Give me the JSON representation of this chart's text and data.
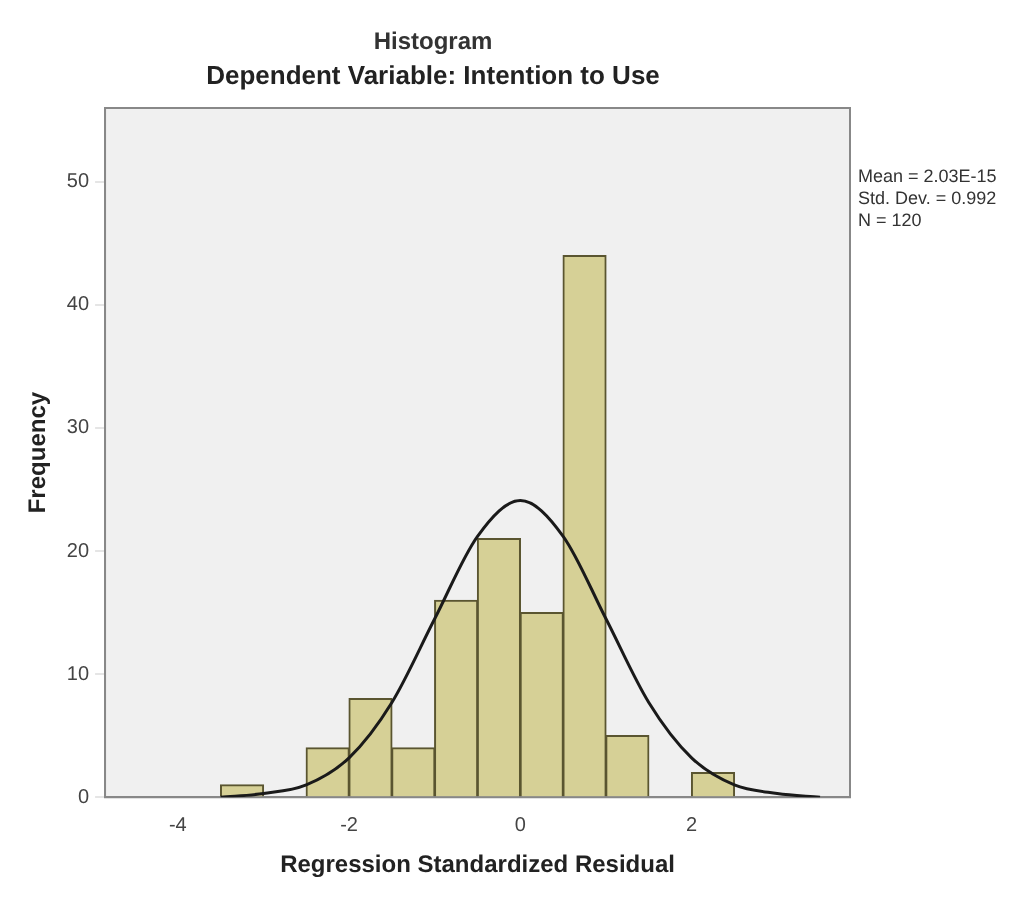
{
  "chart_data": {
    "type": "histogram",
    "title": "Histogram",
    "subtitle": "Dependent Variable: Intention to Use",
    "xlabel": "Regression Standardized Residual",
    "ylabel": "Frequency",
    "series": [
      {
        "bins": [
          -3.5,
          -3,
          -2.5,
          -2,
          -1.5,
          -1,
          -0.5,
          0,
          0.5,
          1,
          1.5,
          2,
          2.5
        ],
        "values": [
          1,
          0,
          4,
          8,
          4,
          16,
          21,
          15,
          44,
          5,
          0,
          2
        ],
        "color": "#d6d096"
      },
      {
        "type": "line",
        "x": [
          -3.5,
          -3,
          -2.5,
          -2,
          -1.5,
          -1,
          -0.5,
          0,
          0.5,
          1,
          1.5,
          2,
          2.5,
          3,
          3.5
        ],
        "values": [
          0,
          0.3,
          1,
          3.2,
          7.7,
          14.5,
          21.2,
          24.1,
          21.2,
          14.5,
          7.7,
          3.2,
          1,
          0.3,
          0
        ],
        "color": "#1a1a1a"
      }
    ],
    "xlim": [
      -4.85,
      3.85
    ],
    "xticks": [
      -4,
      -2,
      0,
      2
    ],
    "ylim": [
      0,
      56
    ],
    "yticks": [
      0,
      10,
      20,
      30,
      40,
      50
    ],
    "grid": false,
    "legend": false,
    "annotations": [
      "Mean = 2.03E-15",
      "Std. Dev. = 0.992",
      "N = 120"
    ]
  }
}
